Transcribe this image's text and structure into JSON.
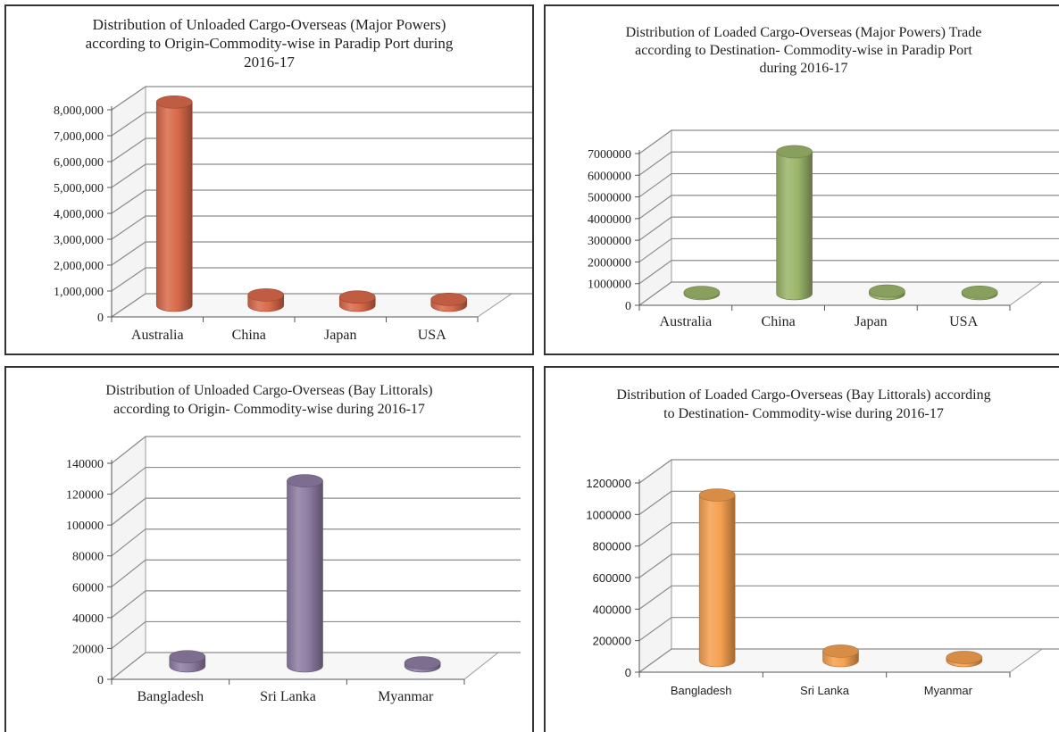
{
  "chart_data": [
    {
      "type": "bar",
      "title": "Distribution of Unloaded Cargo-Overseas (Major Powers)\naccording to Origin-Commodity-wise in Paradip Port during\n2016-17",
      "categories": [
        "Australia",
        "China",
        "Japan",
        "USA"
      ],
      "values": [
        7850000,
        400000,
        320000,
        230000
      ],
      "ylim": [
        0,
        8000000
      ],
      "yticks": [
        "0",
        "1,000,000",
        "2,000,000",
        "3,000,000",
        "4,000,000",
        "5,000,000",
        "6,000,000",
        "7,000,000",
        "8,000,000"
      ],
      "grid": true,
      "color": "#D9694A"
    },
    {
      "type": "bar",
      "title": "Distribution of Loaded Cargo-Overseas (Major Powers) Trade\naccording to Destination- Commodity-wise in Paradip Port\nduring 2016-17",
      "categories": [
        "Australia",
        "China",
        "Japan",
        "USA"
      ],
      "values": [
        60000,
        6550000,
        120000,
        70000
      ],
      "ylim": [
        0,
        7000000
      ],
      "yticks": [
        "0",
        "1000000",
        "2000000",
        "3000000",
        "4000000",
        "5000000",
        "6000000",
        "7000000"
      ],
      "grid": true,
      "color": "#9BB56A"
    },
    {
      "type": "bar",
      "title": "Distribution of Unloaded Cargo-Overseas (Bay Littorals)\naccording to Origin- Commodity-wise during 2016-17",
      "categories": [
        "Bangladesh",
        "Sri Lanka",
        "Myanmar"
      ],
      "values": [
        6000,
        120000,
        2000
      ],
      "ylim": [
        0,
        140000
      ],
      "yticks": [
        "0",
        "20000",
        "40000",
        "60000",
        "80000",
        "100000",
        "120000",
        "140000"
      ],
      "grid": true,
      "color": "#8E7DA3"
    },
    {
      "type": "bar",
      "title": "Distribution of Loaded Cargo-Overseas (Bay Littorals) according\nto Destination- Commodity-wise during 2016-17",
      "categories": [
        "Bangladesh",
        "Sri Lanka",
        "Myanmar"
      ],
      "values": [
        1050000,
        60000,
        20000
      ],
      "ylim": [
        0,
        1200000
      ],
      "yticks": [
        "0",
        "200000",
        "400000",
        "600000",
        "800000",
        "1000000",
        "1200000"
      ],
      "grid": true,
      "color": "#F5A050"
    }
  ]
}
